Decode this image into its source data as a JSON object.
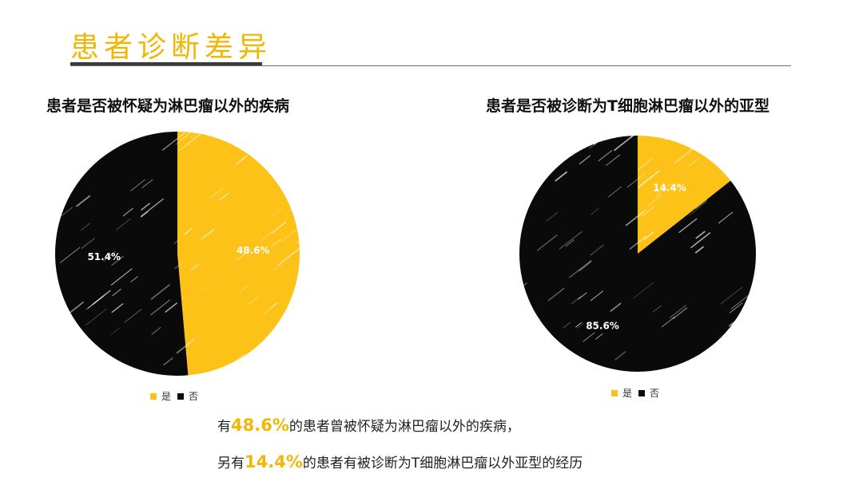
{
  "page": {
    "title": "患者诊断差异",
    "accent_color": "#f2b705",
    "dark_color": "#0a0a0a"
  },
  "chart_data": [
    {
      "type": "pie",
      "title": "患者是否被怀疑为淋巴瘤以外的疾病",
      "categories": [
        "是",
        "否"
      ],
      "values": [
        48.6,
        51.4
      ],
      "labels": [
        "48.6%",
        "51.4%"
      ],
      "colors": [
        "#fdc218",
        "#0a0a0a"
      ],
      "legend": "bottom"
    },
    {
      "type": "pie",
      "title": "患者是否被诊断为T细胞淋巴瘤以外的亚型",
      "categories": [
        "是",
        "否"
      ],
      "values": [
        14.4,
        85.6
      ],
      "labels": [
        "14.4%",
        "85.6%"
      ],
      "colors": [
        "#fdc218",
        "#0a0a0a"
      ],
      "legend": "bottom"
    }
  ],
  "summary": {
    "line1": {
      "prefix": "有",
      "highlight": "48.6%",
      "suffix": "的患者曾被怀疑为淋巴瘤以外的疾病，"
    },
    "line2": {
      "prefix": "另有",
      "highlight": "14.4%",
      "suffix": "的患者有被诊断为T细胞淋巴瘤以外亚型的经历"
    }
  }
}
